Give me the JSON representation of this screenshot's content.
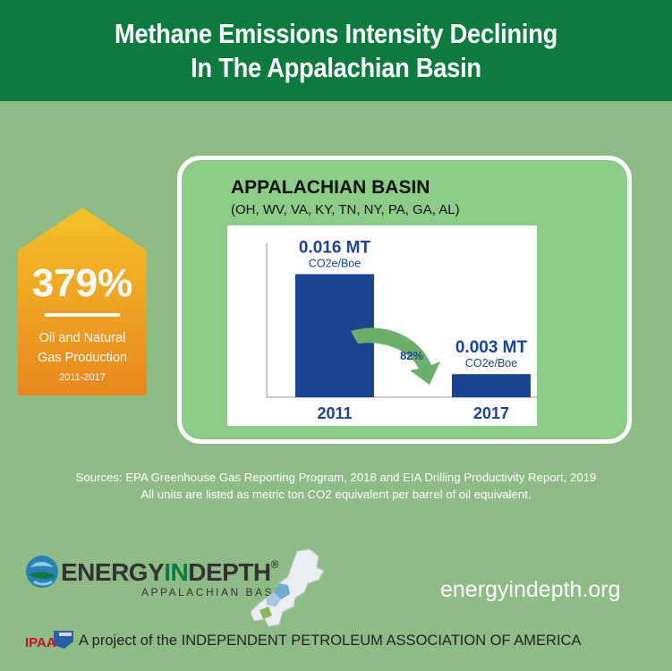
{
  "header": {
    "title_line1": "Methane Emissions Intensity Declining",
    "title_line2": "In The Appalachian Basin"
  },
  "production": {
    "percent": "379%",
    "label_line1": "Oil and Natural",
    "label_line2": "Gas Production",
    "years": "2011-2017"
  },
  "panel": {
    "title": "APPALACHIAN BASIN",
    "states": "(OH, WV, VA, KY, TN, NY, PA, GA, AL)"
  },
  "chart_data": {
    "type": "bar",
    "title": "APPALACHIAN BASIN",
    "categories": [
      "2011",
      "2017"
    ],
    "values": [
      0.016,
      0.003
    ],
    "value_labels": [
      "0.016 MT",
      "0.003 MT"
    ],
    "unit_label": "CO2e/Boe",
    "change_label": "82%",
    "ylim": [
      0,
      0.02
    ],
    "grid": false,
    "bar_color": "#1b4592"
  },
  "footer": {
    "sources": "Sources: EPA Greenhouse Gas Reporting Program, 2018 and EIA Drilling Productivity Report, 2019",
    "units_note": "All units are listed as metric ton CO2 equivalent per barrel of oil equivalent.",
    "logo_word_a": "ENERGY",
    "logo_word_b": "IN",
    "logo_word_c": "DEPTH",
    "logo_reg": "®",
    "logo_sub": "APPALACHIAN BASIN",
    "website": "energyindepth.org",
    "ipaa_text": "IPAA",
    "project": "A project of the INDEPENDENT PETROLEUM ASSOCIATION OF AMERICA"
  },
  "colors": {
    "header_bg": "#0d7a3e",
    "background": "#8dbd84",
    "house_top": "#f5c22a",
    "house_bottom": "#e8861f",
    "arrow": "#6ab06a"
  }
}
